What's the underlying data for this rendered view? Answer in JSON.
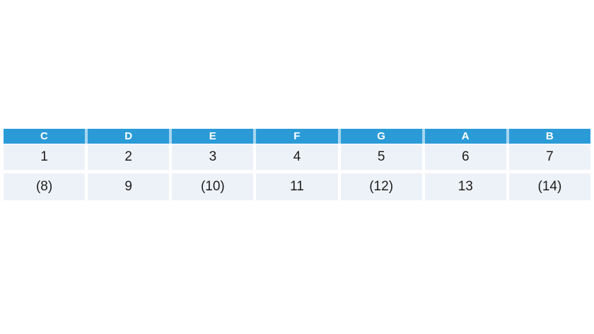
{
  "chart_data": {
    "type": "table",
    "columns": [
      "C",
      "D",
      "E",
      "F",
      "G",
      "A",
      "B"
    ],
    "rows": [
      [
        "1",
        "2",
        "3",
        "4",
        "5",
        "6",
        "7"
      ],
      [
        "(8)",
        "9",
        "(10)",
        "11",
        "(12)",
        "13",
        "(14)"
      ]
    ],
    "title": "",
    "layout_hints": {
      "header_style": "solid blue header band, white bold labels",
      "body_style": "light blue-grey banded cells separated by white gutters",
      "position": "table horizontally full-width with 5px side margins, vertically centered slightly above middle of white canvas"
    }
  },
  "colors": {
    "page_bg": "#ffffff",
    "header_bg": "#2b9bd8",
    "header_text": "#ffffff",
    "header_divider": "#a6d6ee",
    "row_bg": "#edf1f8",
    "cell_text": "#1d1d1b"
  }
}
